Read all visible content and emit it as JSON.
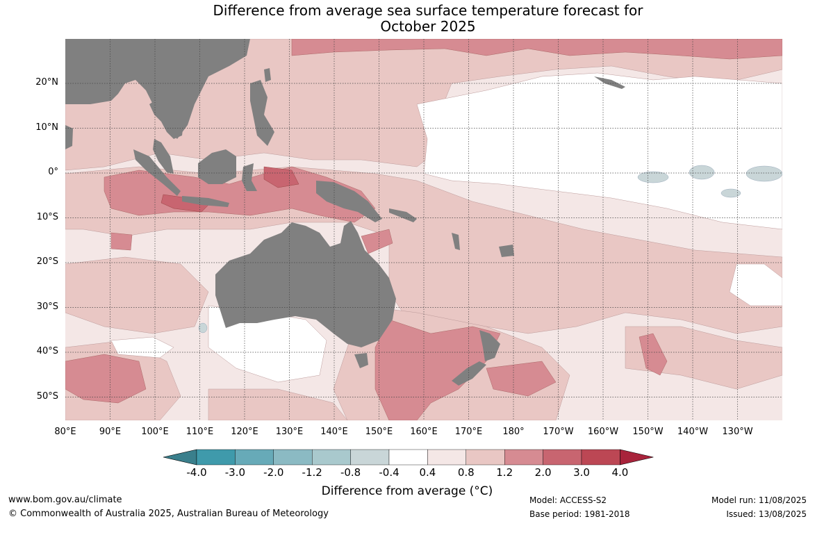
{
  "title": {
    "line1": "Difference from average sea surface temperature forecast for",
    "line2": "October 2025"
  },
  "colors": {
    "land": "#808080",
    "ocean_neutral": "#ffffff",
    "grid": "#444444"
  },
  "map": {
    "lat_labels": [
      "20°N",
      "10°N",
      "0°",
      "10°S",
      "20°S",
      "30°S",
      "40°S",
      "50°S"
    ],
    "lon_labels": [
      "80°E",
      "90°E",
      "100°E",
      "110°E",
      "120°E",
      "130°E",
      "140°E",
      "150°E",
      "160°E",
      "170°E",
      "180°",
      "170°W",
      "160°W",
      "150°W",
      "140°W",
      "130°W"
    ]
  },
  "colorbar": {
    "title": "Difference from average (°C)",
    "ticks": [
      "-4.0",
      "-3.0",
      "-2.0",
      "-1.2",
      "-0.8",
      "-0.4",
      "0.4",
      "0.8",
      "1.2",
      "2.0",
      "3.0",
      "4.0"
    ],
    "bins": [
      {
        "color": "#3f9aab"
      },
      {
        "color": "#67aab8"
      },
      {
        "color": "#8bbac3"
      },
      {
        "color": "#a9c9cd"
      },
      {
        "color": "#c9d6d8"
      },
      {
        "color": "#ffffff"
      },
      {
        "color": "#f4e7e6"
      },
      {
        "color": "#e9c7c4"
      },
      {
        "color": "#d68b92"
      },
      {
        "color": "#c86570"
      },
      {
        "color": "#bc4754"
      }
    ],
    "under_color": "#3a7f8c",
    "over_color": "#a8233b"
  },
  "footer": {
    "url": "www.bom.gov.au/climate",
    "copyright": "© Commonwealth of Australia 2025, Australian Bureau of Meteorology",
    "model": "Model: ACCESS-S2",
    "base_period": "Base period: 1981-2018",
    "model_run": "Model run: 11/08/2025",
    "issued": "Issued: 13/08/2025"
  }
}
